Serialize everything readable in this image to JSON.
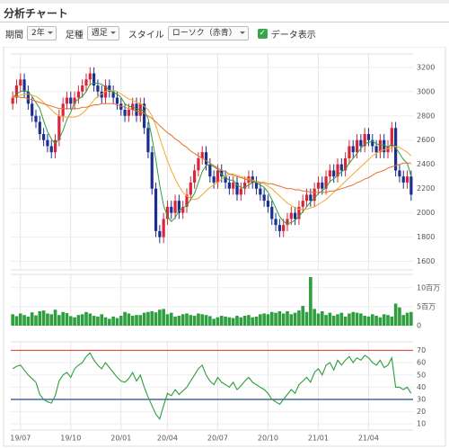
{
  "header": {
    "title": "分析チャート",
    "controls": [
      {
        "label": "期間",
        "value": "2年"
      },
      {
        "label": "足種",
        "value": "週足"
      },
      {
        "label": "スタイル",
        "value": "ローソク（赤青）"
      }
    ],
    "checkbox": "データ表示"
  },
  "chart_data": [
    {
      "type": "candlestick",
      "up_color": "#d9253b",
      "down_color": "#1b2f8f",
      "ylim": [
        1530,
        3310
      ],
      "yticks": [
        1600,
        1800,
        2000,
        2200,
        2400,
        2600,
        2800,
        3000,
        3200
      ],
      "open": [
        2900,
        2950,
        3050,
        3100,
        3000,
        2900,
        2800,
        2750,
        2650,
        2600,
        2550,
        2500,
        2600,
        2800,
        2900,
        2950,
        2900,
        2950,
        3000,
        3050,
        3100,
        3150,
        3050,
        3000,
        2950,
        3050,
        3000,
        2950,
        2900,
        2850,
        2800,
        2850,
        2900,
        2800,
        2900,
        2700,
        2500,
        2200,
        1850,
        1800,
        1950,
        2050,
        2000,
        2100,
        2000,
        2050,
        2150,
        2250,
        2350,
        2450,
        2500,
        2400,
        2300,
        2250,
        2350,
        2300,
        2250,
        2200,
        2250,
        2150,
        2200,
        2250,
        2300,
        2250,
        2200,
        2150,
        2100,
        2050,
        1950,
        1900,
        1850,
        1900,
        1950,
        2000,
        1950,
        2050,
        2100,
        2150,
        2100,
        2200,
        2250,
        2200,
        2300,
        2350,
        2300,
        2400,
        2350,
        2450,
        2550,
        2500,
        2600,
        2550,
        2650,
        2600,
        2550,
        2500,
        2600,
        2500,
        2550,
        2700,
        2350,
        2300,
        2250,
        2300
      ],
      "high": [
        3000,
        3100,
        3150,
        3150,
        3050,
        2950,
        2850,
        2800,
        2700,
        2650,
        2600,
        2650,
        2850,
        2950,
        3000,
        3000,
        3000,
        3050,
        3100,
        3150,
        3200,
        3200,
        3100,
        3050,
        3100,
        3100,
        3050,
        3000,
        2950,
        2900,
        2900,
        2950,
        2950,
        2950,
        2950,
        2750,
        2550,
        2250,
        1900,
        2000,
        2100,
        2100,
        2150,
        2150,
        2100,
        2200,
        2300,
        2400,
        2500,
        2550,
        2550,
        2450,
        2350,
        2400,
        2400,
        2350,
        2300,
        2300,
        2300,
        2250,
        2300,
        2350,
        2350,
        2300,
        2250,
        2200,
        2150,
        2100,
        2000,
        1950,
        1950,
        2000,
        2050,
        2050,
        2100,
        2150,
        2200,
        2200,
        2250,
        2300,
        2300,
        2350,
        2400,
        2400,
        2450,
        2450,
        2500,
        2600,
        2600,
        2650,
        2650,
        2700,
        2700,
        2650,
        2600,
        2650,
        2650,
        2600,
        2750,
        2750,
        2400,
        2350,
        2350,
        2350
      ],
      "low": [
        2850,
        2900,
        3000,
        2950,
        2850,
        2750,
        2700,
        2600,
        2550,
        2500,
        2450,
        2450,
        2550,
        2750,
        2850,
        2850,
        2850,
        2900,
        2950,
        3000,
        3050,
        3000,
        2950,
        2900,
        2900,
        2950,
        2900,
        2850,
        2800,
        2750,
        2750,
        2800,
        2750,
        2750,
        2650,
        2450,
        2150,
        1800,
        1750,
        1750,
        1900,
        1950,
        1950,
        1950,
        1950,
        2000,
        2100,
        2200,
        2300,
        2400,
        2350,
        2250,
        2200,
        2200,
        2250,
        2200,
        2150,
        2150,
        2100,
        2100,
        2150,
        2200,
        2200,
        2150,
        2100,
        2050,
        2000,
        1900,
        1850,
        1800,
        1800,
        1850,
        1900,
        1900,
        1900,
        2000,
        2050,
        2050,
        2050,
        2150,
        2150,
        2150,
        2250,
        2250,
        2250,
        2300,
        2300,
        2400,
        2450,
        2450,
        2500,
        2500,
        2550,
        2500,
        2450,
        2450,
        2450,
        2450,
        2500,
        2300,
        2250,
        2200,
        2200,
        2100
      ],
      "close": [
        2950,
        3050,
        3100,
        3000,
        2900,
        2800,
        2750,
        2650,
        2600,
        2550,
        2500,
        2600,
        2800,
        2900,
        2950,
        2900,
        2950,
        3000,
        3050,
        3100,
        3150,
        3050,
        3000,
        2950,
        3050,
        3000,
        2950,
        2900,
        2850,
        2800,
        2850,
        2900,
        2800,
        2900,
        2700,
        2500,
        2200,
        1850,
        1800,
        1950,
        2050,
        2000,
        2100,
        2000,
        2050,
        2150,
        2250,
        2350,
        2450,
        2500,
        2400,
        2300,
        2250,
        2350,
        2300,
        2250,
        2200,
        2250,
        2150,
        2200,
        2250,
        2300,
        2250,
        2200,
        2150,
        2100,
        2050,
        1950,
        1900,
        1850,
        1900,
        1950,
        2000,
        1950,
        2050,
        2100,
        2150,
        2100,
        2200,
        2250,
        2200,
        2300,
        2350,
        2300,
        2400,
        2350,
        2450,
        2550,
        2500,
        2600,
        2550,
        2650,
        2600,
        2550,
        2500,
        2600,
        2500,
        2550,
        2700,
        2350,
        2300,
        2250,
        2300,
        2150
      ],
      "overlays": [
        {
          "color": "#2e9e3e",
          "values": [
            2950,
            2980,
            3000,
            3010,
            3000,
            2960,
            2910,
            2860,
            2760,
            2670,
            2610,
            2570,
            2610,
            2680,
            2770,
            2830,
            2910,
            2940,
            2960,
            3000,
            3060,
            3070,
            3070,
            3060,
            3040,
            3010,
            2990,
            2980,
            2950,
            2900,
            2880,
            2870,
            2860,
            2850,
            2840,
            2780,
            2620,
            2440,
            2230,
            2060,
            1970,
            1930,
            1960,
            2020,
            2040,
            2060,
            2110,
            2160,
            2250,
            2340,
            2390,
            2400,
            2380,
            2360,
            2320,
            2290,
            2270,
            2270,
            2230,
            2210,
            2210,
            2230,
            2250,
            2250,
            2230,
            2210,
            2170,
            2110,
            2040,
            1970,
            1930,
            1910,
            1920,
            1940,
            1970,
            2010,
            2050,
            2090,
            2120,
            2160,
            2180,
            2210,
            2260,
            2280,
            2310,
            2340,
            2360,
            2410,
            2450,
            2490,
            2530,
            2570,
            2580,
            2590,
            2570,
            2560,
            2560,
            2540,
            2570,
            2540,
            2490,
            2440,
            2410,
            2300
          ]
        },
        {
          "color": "#f0a830",
          "values": [
            2950,
            2960,
            2970,
            2980,
            2980,
            2970,
            2960,
            2940,
            2910,
            2880,
            2850,
            2820,
            2800,
            2790,
            2790,
            2790,
            2790,
            2800,
            2820,
            2850,
            2890,
            2930,
            2960,
            2980,
            3000,
            3010,
            3010,
            3000,
            2980,
            2960,
            2940,
            2930,
            2910,
            2900,
            2880,
            2850,
            2800,
            2720,
            2620,
            2520,
            2430,
            2350,
            2280,
            2220,
            2170,
            2140,
            2120,
            2110,
            2120,
            2150,
            2180,
            2210,
            2230,
            2250,
            2280,
            2300,
            2320,
            2320,
            2310,
            2300,
            2290,
            2280,
            2270,
            2260,
            2250,
            2240,
            2220,
            2200,
            2170,
            2140,
            2110,
            2080,
            2060,
            2040,
            2030,
            2030,
            2030,
            2040,
            2050,
            2070,
            2090,
            2110,
            2140,
            2170,
            2200,
            2230,
            2260,
            2290,
            2320,
            2350,
            2380,
            2410,
            2440,
            2470,
            2490,
            2510,
            2520,
            2530,
            2540,
            2550,
            2540,
            2520,
            2500,
            2470
          ]
        },
        {
          "color": "#e6702e",
          "values": [
            2960,
            2960,
            2950,
            2950,
            2940,
            2930,
            2920,
            2910,
            2900,
            2890,
            2880,
            2870,
            2860,
            2860,
            2860,
            2860,
            2860,
            2860,
            2870,
            2870,
            2880,
            2890,
            2890,
            2900,
            2900,
            2900,
            2900,
            2890,
            2880,
            2870,
            2860,
            2850,
            2840,
            2830,
            2820,
            2800,
            2780,
            2750,
            2720,
            2690,
            2660,
            2640,
            2610,
            2590,
            2560,
            2540,
            2510,
            2490,
            2470,
            2450,
            2430,
            2410,
            2390,
            2370,
            2350,
            2340,
            2320,
            2310,
            2300,
            2290,
            2280,
            2270,
            2260,
            2260,
            2250,
            2250,
            2240,
            2240,
            2230,
            2220,
            2210,
            2200,
            2200,
            2190,
            2190,
            2180,
            2180,
            2170,
            2170,
            2170,
            2170,
            2170,
            2180,
            2180,
            2190,
            2200,
            2210,
            2220,
            2230,
            2250,
            2260,
            2280,
            2290,
            2310,
            2330,
            2340,
            2350,
            2370,
            2380,
            2390,
            2400,
            2410,
            2410,
            2410
          ]
        }
      ]
    },
    {
      "type": "bar",
      "color": "#2e9e3e",
      "ylim": [
        0,
        13.5
      ],
      "yticks": [
        0,
        {
          "value": 5,
          "label": "5百万"
        },
        {
          "value": 10,
          "label": "10百万"
        }
      ],
      "values": [
        3,
        2.5,
        3.2,
        2.8,
        2.4,
        3.5,
        2.7,
        3.8,
        4,
        3.2,
        3,
        4.2,
        2.8,
        3.6,
        3.3,
        2.5,
        2.2,
        2.8,
        3,
        3.6,
        3.2,
        2.6,
        2.4,
        3,
        2.2,
        1.8,
        2.4,
        2,
        2.6,
        3.6,
        3.2,
        2.6,
        2.8,
        2.8,
        3.4,
        3.6,
        3.8,
        3.5,
        4.2,
        4.4,
        3,
        3.4,
        2.4,
        2.6,
        3,
        3.2,
        2.8,
        2.6,
        3.2,
        3,
        2.8,
        2.5,
        1.8,
        2.2,
        2.6,
        2.4,
        2.2,
        2,
        2.6,
        2.2,
        2.6,
        2.8,
        2.2,
        2.4,
        3,
        3.2,
        3,
        3.6,
        3.4,
        3.8,
        3.2,
        3.8,
        3,
        3.4,
        4,
        5.2,
        3.6,
        12.8,
        4.4,
        3.2,
        3.8,
        2.8,
        3.4,
        2.6,
        3,
        3.4,
        2.4,
        3.2,
        3.6,
        3.4,
        3.2,
        2.6,
        2.4,
        3,
        2.6,
        2.2,
        3,
        2.8,
        2.4,
        5.8,
        4.8,
        2.8,
        3.4,
        3.6
      ]
    },
    {
      "type": "line",
      "color": "#2e9e3e",
      "ylim": [
        5,
        77
      ],
      "yticks": [
        10,
        20,
        30,
        40,
        50,
        60,
        70
      ],
      "reference_lines": [
        {
          "value": 70,
          "color": "#d9534f"
        },
        {
          "value": 30,
          "color": "#1f4e8c"
        }
      ],
      "categories": [
        null,
        null,
        "19/07",
        null,
        null,
        null,
        null,
        null,
        null,
        null,
        null,
        null,
        null,
        null,
        null,
        "19/10",
        null,
        null,
        null,
        null,
        null,
        null,
        null,
        null,
        null,
        null,
        null,
        null,
        "20/01",
        null,
        null,
        null,
        null,
        null,
        null,
        null,
        null,
        null,
        null,
        null,
        "20/04",
        null,
        null,
        null,
        null,
        null,
        null,
        null,
        null,
        null,
        null,
        null,
        null,
        "20/07",
        null,
        null,
        null,
        null,
        null,
        null,
        null,
        null,
        null,
        null,
        null,
        null,
        "20/10",
        null,
        null,
        null,
        null,
        null,
        null,
        null,
        null,
        null,
        null,
        null,
        null,
        "21/01",
        null,
        null,
        null,
        null,
        null,
        null,
        null,
        null,
        null,
        null,
        null,
        null,
        "21/04",
        null,
        null,
        null,
        null,
        null,
        null,
        null,
        null,
        null,
        null,
        null
      ],
      "values": [
        55,
        57,
        58,
        54,
        50,
        47,
        44,
        34,
        30,
        28,
        27,
        33,
        45,
        50,
        52,
        48,
        55,
        58,
        60,
        65,
        68,
        62,
        58,
        55,
        60,
        56,
        52,
        48,
        45,
        44,
        47,
        52,
        45,
        50,
        40,
        32,
        25,
        18,
        14,
        25,
        35,
        33,
        38,
        34,
        37,
        40,
        45,
        50,
        55,
        58,
        50,
        45,
        42,
        48,
        44,
        42,
        40,
        44,
        38,
        41,
        45,
        48,
        44,
        42,
        40,
        38,
        35,
        30,
        28,
        26,
        30,
        34,
        38,
        35,
        42,
        45,
        48,
        44,
        52,
        55,
        50,
        58,
        60,
        54,
        62,
        58,
        62,
        65,
        60,
        64,
        62,
        66,
        64,
        60,
        58,
        62,
        56,
        58,
        64,
        40,
        40,
        38,
        40,
        35
      ]
    }
  ]
}
